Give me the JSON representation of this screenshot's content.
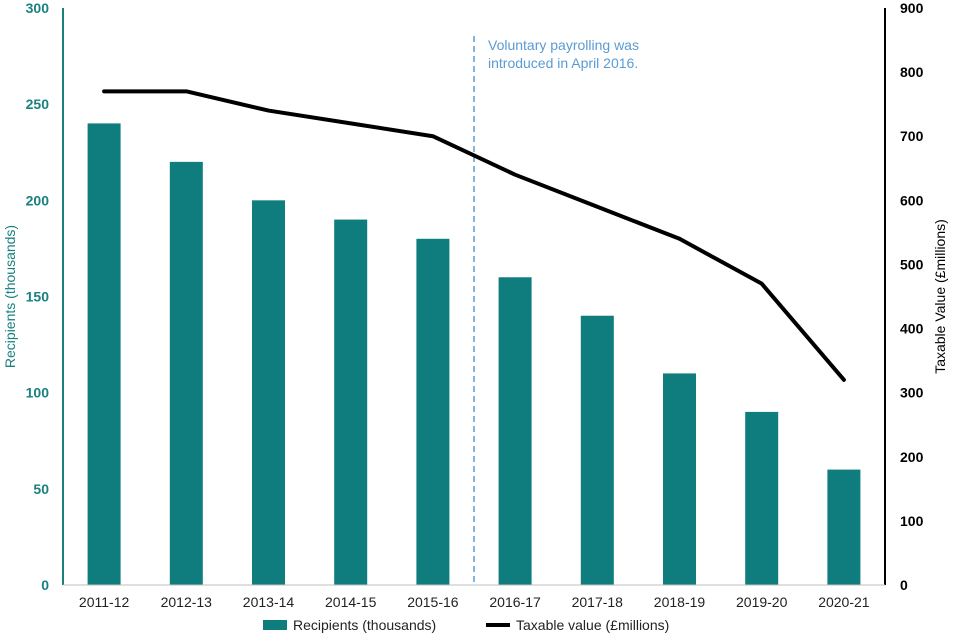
{
  "chart_data": {
    "type": "bar+line",
    "title": "",
    "categories": [
      "2011-12",
      "2012-13",
      "2013-14",
      "2014-15",
      "2015-16",
      "2016-17",
      "2017-18",
      "2018-19",
      "2019-20",
      "2020-21"
    ],
    "series": [
      {
        "name": "Recipients (thousands)",
        "type": "bar",
        "axis": "left",
        "color": "#0f7d7d",
        "values": [
          240,
          220,
          200,
          190,
          180,
          160,
          140,
          110,
          90,
          60
        ]
      },
      {
        "name": "Taxable value (£millions)",
        "type": "line",
        "axis": "right",
        "color": "#000000",
        "values": [
          770,
          770,
          740,
          720,
          700,
          640,
          590,
          540,
          470,
          320
        ]
      }
    ],
    "y_left": {
      "label": "Recipients (thousands)",
      "range": [
        0,
        300
      ],
      "ticks": [
        "0",
        "50",
        "100",
        "150",
        "200",
        "250",
        "300"
      ],
      "color": "#1a8080"
    },
    "y_right": {
      "label": "Taxable Value (£millions)",
      "range": [
        0,
        900
      ],
      "ticks": [
        "0",
        "100",
        "200",
        "300",
        "400",
        "500",
        "600",
        "700",
        "800",
        "900"
      ],
      "color": "#000000"
    },
    "annotation": {
      "lines": [
        "Voluntary payrolling was",
        "introduced in April 2016."
      ],
      "between": [
        "2015-16",
        "2016-17"
      ],
      "color": "#5b9bd5"
    },
    "legend": {
      "position": "bottom",
      "entries": [
        "Recipients (thousands)",
        "Taxable value (£millions)"
      ]
    },
    "grid": false
  }
}
